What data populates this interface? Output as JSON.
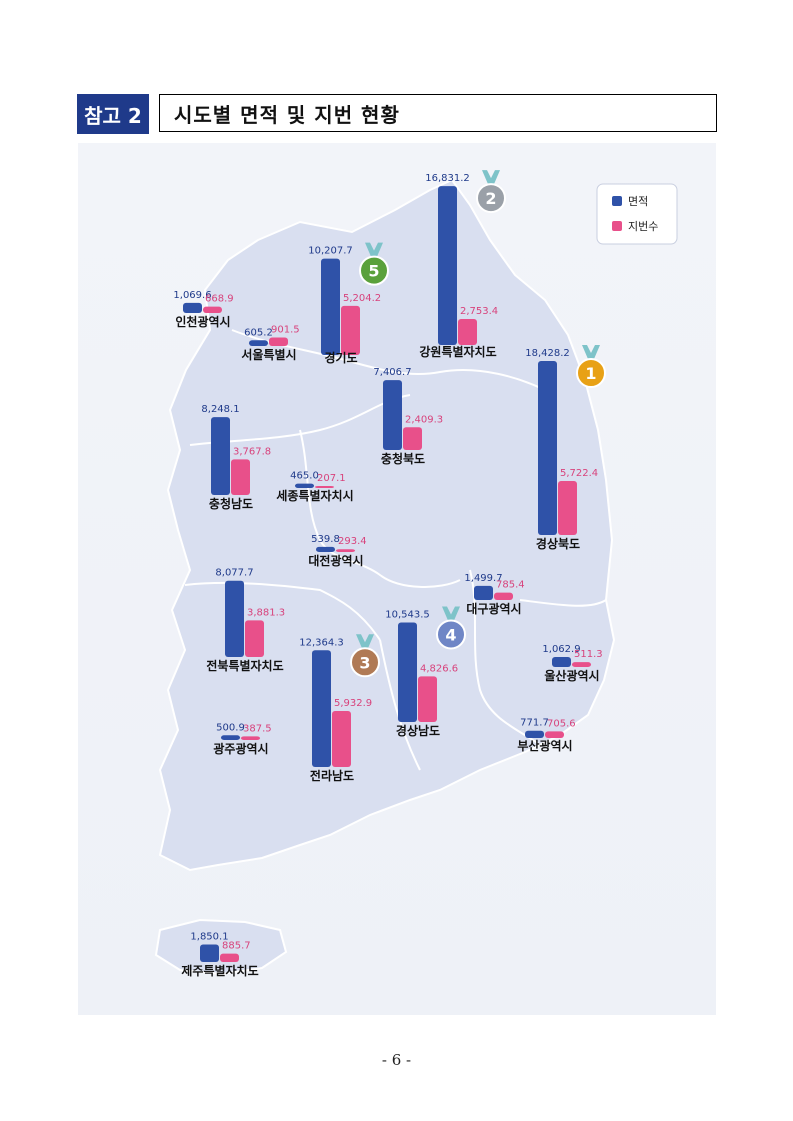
{
  "header": {
    "badge": "참고 2",
    "title": "시도별 면적 및 지번 현황"
  },
  "legend": {
    "area": "면적",
    "parcels": "지번수"
  },
  "colors": {
    "area": "#2f52a8",
    "parcels": "#e8508a",
    "badge": "#1f3a8a",
    "map": "#d9dff0"
  },
  "chart_data": {
    "type": "bar",
    "title": "",
    "series": [
      {
        "name": "면적",
        "key": "area"
      },
      {
        "name": "지번수",
        "key": "parcels"
      }
    ],
    "regions": [
      {
        "name": "인천광역시",
        "area": 1069.6,
        "parcels": 668.9,
        "area_label": "1,069.6",
        "parcels_label": "668.9"
      },
      {
        "name": "서울특별시",
        "area": 605.2,
        "parcels": 901.5,
        "area_label": "605.2",
        "parcels_label": "901.5"
      },
      {
        "name": "경기도",
        "area": 10207.7,
        "parcels": 5204.2,
        "area_label": "10,207.7",
        "parcels_label": "5,204.2",
        "rank": 5
      },
      {
        "name": "강원특별자치도",
        "area": 16831.2,
        "parcels": 2753.4,
        "area_label": "16,831.2",
        "parcels_label": "2,753.4",
        "rank": 2
      },
      {
        "name": "경상북도",
        "area": 18428.2,
        "parcels": 5722.4,
        "area_label": "18,428.2",
        "parcels_label": "5,722.4",
        "rank": 1
      },
      {
        "name": "충청북도",
        "area": 7406.7,
        "parcels": 2409.3,
        "area_label": "7,406.7",
        "parcels_label": "2,409.3"
      },
      {
        "name": "충청남도",
        "area": 8248.1,
        "parcels": 3767.8,
        "area_label": "8,248.1",
        "parcels_label": "3,767.8"
      },
      {
        "name": "세종특별자치시",
        "area": 465.0,
        "parcels": 207.1,
        "area_label": "465.0",
        "parcels_label": "207.1"
      },
      {
        "name": "대전광역시",
        "area": 539.8,
        "parcels": 293.4,
        "area_label": "539.8",
        "parcels_label": "293.4"
      },
      {
        "name": "대구광역시",
        "area": 1499.7,
        "parcels": 785.4,
        "area_label": "1,499.7",
        "parcels_label": "785.4"
      },
      {
        "name": "전북특별자치도",
        "area": 8077.7,
        "parcels": 3881.3,
        "area_label": "8,077.7",
        "parcels_label": "3,881.3"
      },
      {
        "name": "전라남도",
        "area": 12364.3,
        "parcels": 5932.9,
        "area_label": "12,364.3",
        "parcels_label": "5,932.9",
        "rank": 3
      },
      {
        "name": "경상남도",
        "area": 10543.5,
        "parcels": 4826.6,
        "area_label": "10,543.5",
        "parcels_label": "4,826.6",
        "rank": 4
      },
      {
        "name": "울산광역시",
        "area": 1062.9,
        "parcels": 511.3,
        "area_label": "1,062.9",
        "parcels_label": "511.3"
      },
      {
        "name": "광주광역시",
        "area": 500.9,
        "parcels": 387.5,
        "area_label": "500.9",
        "parcels_label": "387.5"
      },
      {
        "name": "부산광역시",
        "area": 771.7,
        "parcels": 705.6,
        "area_label": "771.7",
        "parcels_label": "705.6"
      },
      {
        "name": "제주특별자치도",
        "area": 1850.1,
        "parcels": 885.7,
        "area_label": "1,850.1",
        "parcels_label": "885.7"
      }
    ]
  },
  "footer": {
    "page": "- 6 -"
  }
}
